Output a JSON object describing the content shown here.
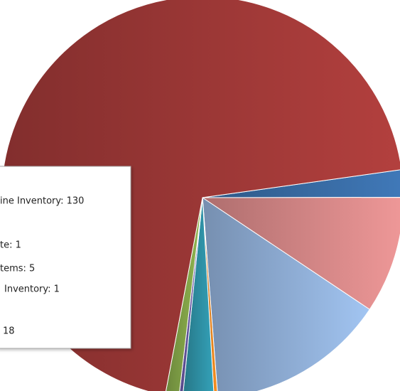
{
  "chart_data": {
    "type": "pie",
    "values": [
      2.2,
      9.4,
      14.4,
      0.3,
      2.5,
      0.3,
      1.1,
      69.8
    ],
    "colors": [
      "#3a6ea8",
      "#d98a8a",
      "#93b3dc",
      "#e8861f",
      "#2f93a8",
      "#6a5aa8",
      "#86a84a",
      "#a33a38"
    ],
    "tooltip_lines": [
      "ine Inventory: 130",
      "te: 1",
      "tems: 5",
      "Inventory: 1",
      "18"
    ]
  }
}
